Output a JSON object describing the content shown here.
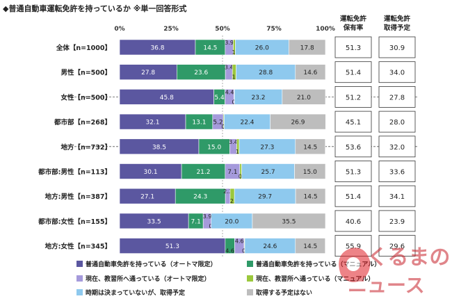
{
  "chart_data": {
    "type": "bar",
    "stacked": true,
    "orientation": "horizontal",
    "title": "◆普通自動車運転免許を持っているか ※単一回答形式",
    "xlim": [
      0,
      100
    ],
    "x_ticks": [
      "0%",
      "25%",
      "50%",
      "75%",
      "100%"
    ],
    "categories": [
      "全体【n=1000】",
      "男性【n=500】",
      "女性【n=500】",
      "都市部【n=268】",
      "地方【n=732】",
      "都市部:男性【n=113】",
      "地方:男性【n=387】",
      "都市部:女性【n=155】",
      "地方:女性【n=345】"
    ],
    "series": [
      {
        "name": "普通自動車免許を持っている（オートマ限定）",
        "color": "#5b57a0",
        "values": [
          36.8,
          27.8,
          45.8,
          32.1,
          38.5,
          30.1,
          27.1,
          33.5,
          51.3
        ]
      },
      {
        "name": "普通自動車免許を持っている（マニュアル）",
        "color": "#2f9a68",
        "values": [
          14.5,
          23.6,
          5.4,
          13.1,
          15.0,
          21.2,
          24.3,
          7.1,
          4.6
        ]
      },
      {
        "name": "現在、教習所へ通っている（オートマ限定）",
        "color": "#a59adb",
        "values": [
          3.9,
          3.4,
          4.4,
          5.2,
          3.4,
          7.1,
          2.3,
          3.9,
          4.6
        ]
      },
      {
        "name": "現在、教習所へ通っている（マニュアル）",
        "color": "#9bc83c",
        "values": [
          1.0,
          1.8,
          0.2,
          0.4,
          1.2,
          0.9,
          2.1,
          0.0,
          0.3
        ]
      },
      {
        "name": "時期は決まっていないが、取得予定",
        "color": "#8ec9ee",
        "values": [
          26.0,
          28.8,
          23.2,
          22.4,
          27.3,
          25.7,
          29.7,
          20.0,
          24.6
        ]
      },
      {
        "name": "取得する予定はない",
        "color": "#bdbdbd",
        "values": [
          17.8,
          14.6,
          21.0,
          26.9,
          14.5,
          15.0,
          14.5,
          35.5,
          14.5
        ]
      }
    ],
    "side_columns": [
      {
        "header_line1": "運転免許",
        "header_line2": "保有率",
        "values": [
          "51.3",
          "51.4",
          "51.2",
          "45.1",
          "53.6",
          "51.3",
          "51.4",
          "40.6",
          "55.9"
        ]
      },
      {
        "header_line1": "運転免許",
        "header_line2": "取得予定",
        "values": [
          "30.9",
          "34.0",
          "27.8",
          "28.0",
          "32.0",
          "33.6",
          "34.1",
          "23.9",
          "29.6"
        ]
      }
    ]
  },
  "watermark": {
    "line1": "くるまの",
    "line2": "ニュース"
  }
}
